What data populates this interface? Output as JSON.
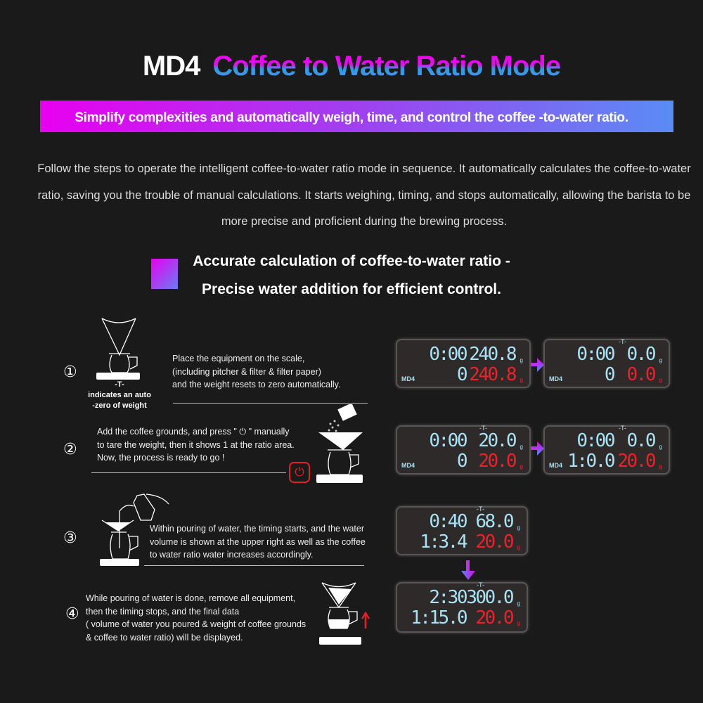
{
  "title": {
    "model": "MD4",
    "mode": "Coffee to Water Ratio Mode"
  },
  "banner": "Simplify complexities and automatically weigh, time, and control the coffee -to-water ratio.",
  "intro": "Follow the steps to operate the intelligent coffee-to-water ratio mode in sequence. It automatically calculates the coffee-to-water ratio, saving you the trouble of manual calculations. It starts weighing, timing, and stops automatically, allowing the barista to be more precise and proficient during the brewing process.",
  "subheading": {
    "line1": "Accurate calculation of coffee-to-water ratio -",
    "line2": "Precise water addition for efficient control."
  },
  "colors": {
    "accent_magenta": "#e800f0",
    "accent_blue": "#5a8cf5",
    "display_blue": "#a8e2f4",
    "display_red": "#f0202a"
  },
  "tare_note": {
    "symbol": "-T-",
    "line1": "indicates an auto",
    "line2": "-zero of weight"
  },
  "steps": [
    {
      "number": "①",
      "lines": [
        "Place the equipment on the scale,",
        "(including pitcher & filter & filter paper)",
        "and the weight resets to zero automatically."
      ]
    },
    {
      "number": "②",
      "lines": [
        "Add the coffee grounds, and press \" ⏻ \" manually",
        "to tare the weight, then it shows 1 at the ratio area.",
        "Now, the process is  ready to go !"
      ]
    },
    {
      "number": "③",
      "lines": [
        "Within pouring of water, the timing starts, and the water",
        "volume is shown at the upper right as well as the coffee",
        "to water ratio water increases accordingly."
      ]
    },
    {
      "number": "④",
      "lines": [
        "While pouring of water is done, remove all equipment,",
        "then the timing stops,  and the final data",
        "( volume of water you poured & weight of coffee grounds",
        "  & coffee to water ratio) will be displayed."
      ]
    }
  ],
  "displays": [
    {
      "time": "0:00",
      "water": "240.8",
      "ratio": "0",
      "coffee": "240.8",
      "label": "MD4",
      "unit": "g",
      "tare": ""
    },
    {
      "time": "0:00",
      "water": "0.0",
      "ratio": "0",
      "coffee": "0.0",
      "label": "MD4",
      "unit": "g",
      "tare": "-T-"
    },
    {
      "time": "0:00",
      "water": "20.0",
      "ratio": "0",
      "coffee": "20.0",
      "label": "MD4",
      "unit": "g",
      "tare": "-T-"
    },
    {
      "time": "0:00",
      "water": "0.0",
      "ratio": "1:0.0",
      "coffee": "20.0",
      "label": "MD4",
      "unit": "g",
      "tare": "-T-"
    },
    {
      "time": "0:40",
      "water": "68.0",
      "ratio": "1:3.4",
      "coffee": "20.0",
      "label": "",
      "unit": "g",
      "tare": "-T-"
    },
    {
      "time": "2:30",
      "water": "300.0",
      "ratio": "1:15.0",
      "coffee": "20.0",
      "label": "",
      "unit": "g",
      "tare": "-T-"
    }
  ]
}
